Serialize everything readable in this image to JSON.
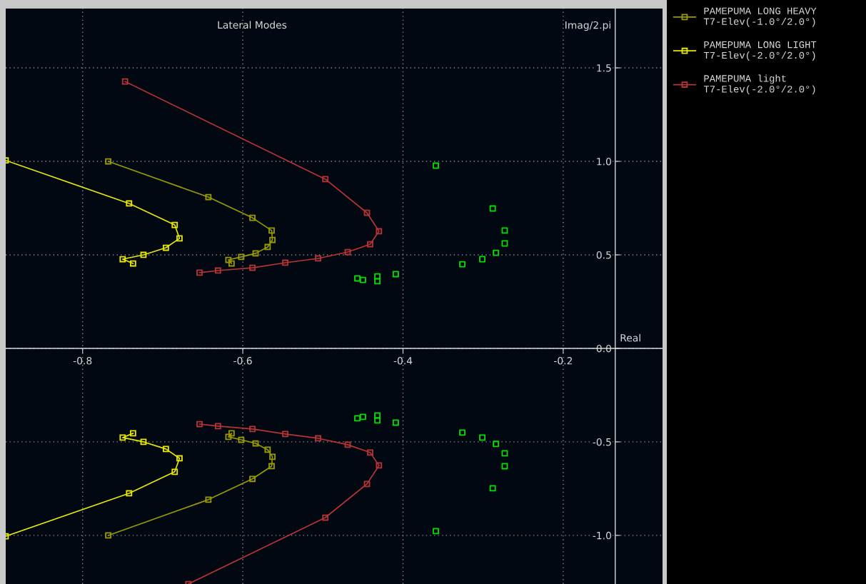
{
  "chart_data": {
    "type": "line",
    "title": "Lateral Modes",
    "xlabel": "Real",
    "ylabel": "Imag/2.pi",
    "xlim": [
      -0.896,
      -0.076
    ],
    "ylim": [
      -1.26,
      1.817
    ],
    "xticks": [
      -0.8,
      -0.6,
      -0.4,
      -0.2
    ],
    "yticks": [
      {
        "value": -1.0,
        "label": "-1.0"
      },
      -0.5,
      {
        "value": 0,
        "label": "0.0"
      },
      0.5,
      {
        "value": 1.0,
        "label": "1.0"
      },
      1.5
    ],
    "grid": true,
    "legend": "right",
    "marker": "square",
    "line_style": "solid",
    "series": [
      {
        "name": "PAMEPUMA LONG HEAVY\nT7-Elev(-1.0°/2.0°)",
        "color": "#9a9a00",
        "x": [
          -0.768,
          -0.643,
          -0.588,
          -0.564,
          -0.563,
          -0.569,
          -0.584,
          -0.602,
          -0.618,
          -0.614,
          null,
          -0.614,
          -0.618,
          -0.602,
          -0.584,
          -0.569,
          -0.563,
          -0.564,
          -0.588,
          -0.643,
          -0.768
        ],
        "values": [
          1.0,
          0.809,
          0.698,
          0.63,
          0.58,
          0.542,
          0.508,
          0.489,
          0.473,
          0.454,
          null,
          -0.454,
          -0.473,
          -0.489,
          -0.508,
          -0.542,
          -0.58,
          -0.63,
          -0.698,
          -0.809,
          -1.0
        ]
      },
      {
        "name": "PAMEPUMA LONG LIGHT\nT7-Elev(-2.0°/2.0°)",
        "color": "#e8e800",
        "x": [
          -0.896,
          -0.742,
          -0.685,
          -0.679,
          -0.696,
          -0.724,
          -0.75,
          -0.737,
          null,
          -0.737,
          -0.75,
          -0.724,
          -0.696,
          -0.679,
          -0.685,
          -0.742,
          -0.896
        ],
        "values": [
          1.005,
          0.775,
          0.66,
          0.588,
          0.538,
          0.5,
          0.477,
          0.454,
          null,
          -0.454,
          -0.477,
          -0.5,
          -0.538,
          -0.588,
          -0.66,
          -0.775,
          -1.005
        ]
      },
      {
        "name": "PAMEPUMA light\nT7-Elev(-2.0°/2.0°)",
        "color": "#b83434",
        "x": [
          -0.747,
          -0.497,
          -0.445,
          -0.43,
          -0.441,
          -0.469,
          -0.506,
          -0.547,
          -0.588,
          -0.631,
          -0.654,
          null,
          -0.654,
          -0.631,
          -0.588,
          -0.547,
          -0.506,
          -0.469,
          -0.441,
          -0.43,
          -0.445,
          -0.497,
          -0.668
        ],
        "values": [
          1.427,
          0.905,
          0.725,
          0.626,
          0.557,
          0.515,
          0.481,
          0.458,
          0.431,
          0.416,
          0.405,
          null,
          -0.405,
          -0.416,
          -0.431,
          -0.458,
          -0.481,
          -0.515,
          -0.557,
          -0.626,
          -0.725,
          -0.905,
          -1.26
        ]
      },
      {
        "type": "scatter",
        "color": "#00e000",
        "x": [
          -0.359,
          -0.288,
          -0.273,
          -0.273,
          -0.284,
          -0.301,
          -0.326,
          -0.409,
          -0.432,
          -0.432,
          -0.45,
          -0.457,
          -0.359,
          -0.288,
          -0.273,
          -0.273,
          -0.284,
          -0.301,
          -0.326,
          -0.409,
          -0.432,
          -0.432,
          -0.45,
          -0.457
        ],
        "values": [
          0.977,
          0.748,
          0.63,
          0.561,
          0.511,
          0.477,
          0.45,
          0.397,
          0.385,
          0.359,
          0.366,
          0.374,
          -0.977,
          -0.748,
          -0.63,
          -0.561,
          -0.511,
          -0.477,
          -0.45,
          -0.397,
          -0.385,
          -0.359,
          -0.366,
          -0.374
        ]
      }
    ]
  }
}
